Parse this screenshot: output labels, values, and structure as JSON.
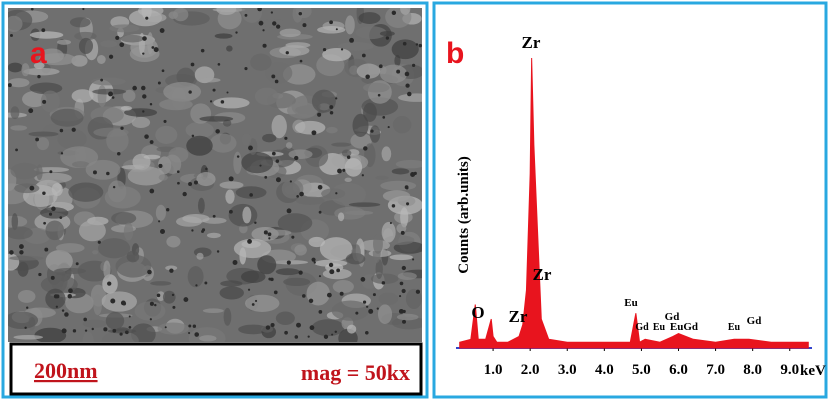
{
  "panel_a": {
    "label": "a",
    "scale_bar": "200nm",
    "magnification": "mag = 50kx"
  },
  "chart_data": {
    "type": "area",
    "label": "b",
    "y_label": "Counts (arb.units)",
    "x_unit": "keV",
    "color": "#e8141e",
    "xlim": [
      0,
      9.6
    ],
    "ylim": [
      0,
      100
    ],
    "xticks": [
      {
        "value": 1,
        "label": "1.0"
      },
      {
        "value": 2,
        "label": "2.0"
      },
      {
        "value": 3,
        "label": "3.0"
      },
      {
        "value": 4,
        "label": "4.0"
      },
      {
        "value": 5,
        "label": "5.0"
      },
      {
        "value": 6,
        "label": "6.0"
      },
      {
        "value": 7,
        "label": "7.0"
      },
      {
        "value": 8,
        "label": "8.0"
      },
      {
        "value": 9,
        "label": "9.0"
      }
    ],
    "x": [
      0.1,
      0.4,
      0.52,
      0.6,
      0.8,
      0.95,
      1.0,
      1.1,
      1.4,
      1.7,
      1.8,
      1.9,
      2.0,
      2.04,
      2.1,
      2.2,
      2.3,
      2.5,
      3.0,
      4.0,
      4.7,
      4.85,
      4.95,
      5.1,
      5.5,
      5.85,
      6.0,
      6.4,
      7.0,
      7.5,
      7.9,
      8.5,
      9.5
    ],
    "values": [
      2,
      3,
      15,
      3,
      3,
      10,
      4,
      2,
      2,
      4,
      8,
      20,
      60,
      100,
      70,
      40,
      10,
      3,
      2,
      2,
      2,
      12,
      2,
      3,
      2,
      4,
      5,
      3,
      2,
      3,
      3,
      2,
      2
    ],
    "annotations": [
      "Zr",
      "Zr",
      "O",
      "Zr",
      "Eu",
      "Gd",
      "Gd",
      "Eu",
      "EuGd",
      "Eu",
      "Gd"
    ]
  }
}
